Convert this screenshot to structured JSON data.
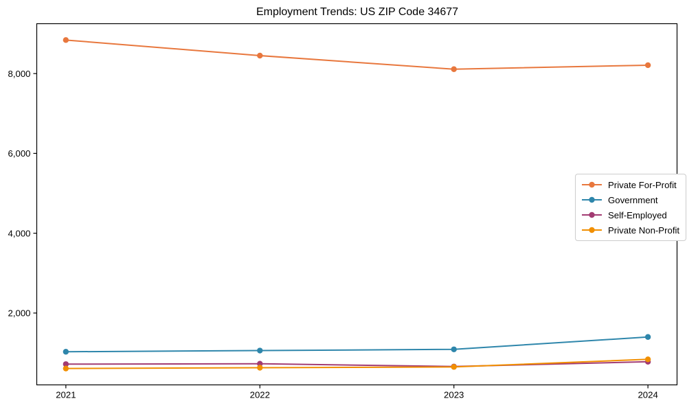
{
  "chart_data": {
    "type": "line",
    "title": "Employment Trends: US ZIP Code 34677",
    "xlabel": "",
    "ylabel": "",
    "x": [
      2021,
      2022,
      2023,
      2024
    ],
    "x_tick_labels": [
      "2021",
      "2022",
      "2023",
      "2024"
    ],
    "y_ticks": [
      2000,
      4000,
      6000,
      8000
    ],
    "y_tick_labels": [
      "2,000",
      "4,000",
      "6,000",
      "8,000"
    ],
    "xlim": [
      2020.85,
      2024.15
    ],
    "ylim": [
      200,
      9250
    ],
    "grid": false,
    "legend_position": "center-right",
    "series": [
      {
        "name": "Private For-Profit",
        "color": "#E8773D",
        "values": [
          8840,
          8450,
          8110,
          8210
        ]
      },
      {
        "name": "Government",
        "color": "#2E86AB",
        "values": [
          1030,
          1060,
          1090,
          1400
        ]
      },
      {
        "name": "Self-Employed",
        "color": "#A23B72",
        "values": [
          720,
          730,
          660,
          780
        ]
      },
      {
        "name": "Private Non-Profit",
        "color": "#F18F01",
        "values": [
          610,
          630,
          650,
          840
        ]
      }
    ],
    "axis_color": "#000000",
    "background_color": "#ffffff"
  }
}
